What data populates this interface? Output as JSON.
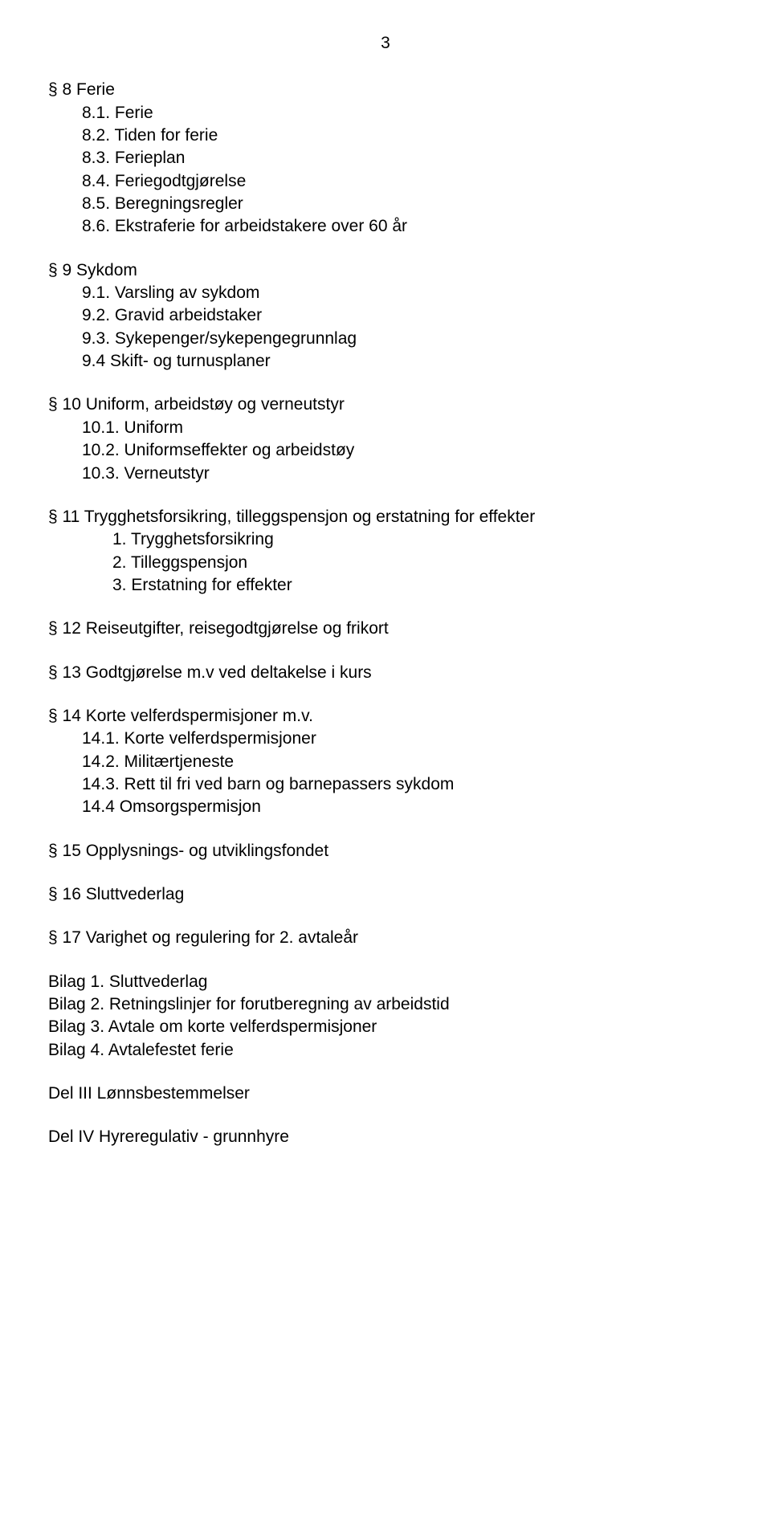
{
  "pageNumber": "3",
  "sections": {
    "s8": {
      "title": "§ 8  Ferie",
      "items": [
        "8.1. Ferie",
        "8.2. Tiden for ferie",
        "8.3. Ferieplan",
        "8.4. Feriegodtgjørelse",
        "8.5. Beregningsregler",
        "8.6. Ekstraferie for arbeidstakere over 60 år"
      ]
    },
    "s9": {
      "title": "§ 9  Sykdom",
      "items": [
        "9.1. Varsling av sykdom",
        "9.2. Gravid arbeidstaker",
        "9.3. Sykepenger/sykepengegrunnlag",
        "9.4  Skift- og turnusplaner"
      ]
    },
    "s10": {
      "title": "§ 10  Uniform, arbeidstøy og verneutstyr",
      "items": [
        "10.1. Uniform",
        "10.2. Uniformseffekter og arbeidstøy",
        "10.3. Verneutstyr"
      ]
    },
    "s11": {
      "title": "§ 11  Trygghetsforsikring, tilleggspensjon og erstatning for effekter",
      "items": [
        "1.  Trygghetsforsikring",
        "2.  Tilleggspensjon",
        "3.   Erstatning for effekter"
      ]
    },
    "s12": {
      "title": "§ 12   Reiseutgifter, reisegodtgjørelse og  frikort"
    },
    "s13": {
      "title": "§ 13  Godtgjørelse m.v ved deltakelse i kurs"
    },
    "s14": {
      "title": "§ 14  Korte velferdspermisjoner  m.v.",
      "items": [
        "14.1.   Korte velferdspermisjoner",
        "14.2.   Militærtjeneste",
        "14.3.   Rett til fri ved barn og barnepassers sykdom",
        "14.4   Omsorgspermisjon"
      ]
    },
    "s15": {
      "title": "§ 15  Opplysnings- og utviklingsfondet"
    },
    "s16": {
      "title": "§ 16  Sluttvederlag"
    },
    "s17": {
      "title": "§ 17  Varighet og regulering for 2. avtaleår"
    }
  },
  "bilag": [
    "Bilag 1.  Sluttvederlag",
    "Bilag 2.  Retningslinjer for forutberegning av arbeidstid",
    "Bilag 3.  Avtale om korte velferdspermisjoner",
    "Bilag 4.  Avtalefestet ferie"
  ],
  "del3": "Del III Lønnsbestemmelser",
  "del4": "Del IV Hyreregulativ - grunnhyre"
}
